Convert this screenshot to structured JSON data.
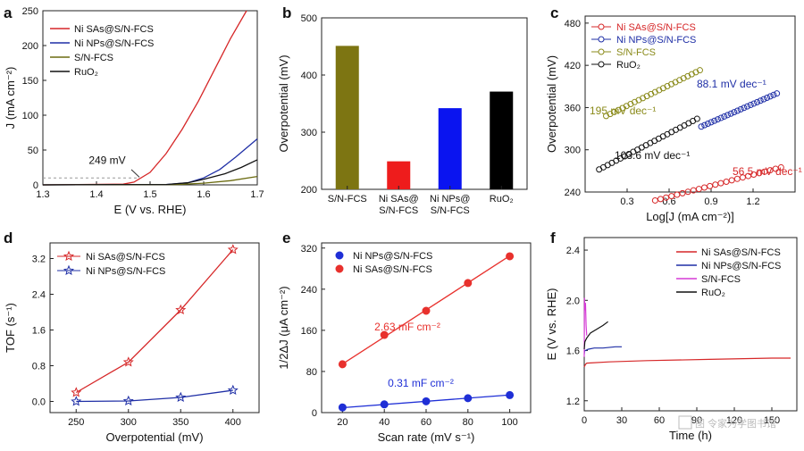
{
  "chart_data": [
    {
      "panel": "a",
      "type": "line",
      "xlabel": "E (V vs. RHE)",
      "ylabel": "J (mA cm⁻²)",
      "xlim": [
        1.3,
        1.7
      ],
      "ylim": [
        0,
        250
      ],
      "xticks": [
        1.3,
        1.4,
        1.5,
        1.6,
        1.7
      ],
      "xtick_labels": [
        "1.3",
        "1.4",
        "1.5",
        "1.6",
        "1.7"
      ],
      "yticks": [
        0,
        50,
        100,
        150,
        200,
        250
      ],
      "ytick_labels": [
        "0",
        "50",
        "100",
        "150",
        "200",
        "250"
      ],
      "legend_position": "top-left",
      "legend": [
        "Ni SAs@S/N-FCS",
        "Ni NPs@S/N-FCS",
        "S/N-FCS",
        "RuO₂"
      ],
      "series": [
        {
          "name": "Ni SAs@S/N-FCS",
          "color": "#d62728",
          "x": [
            1.3,
            1.45,
            1.47,
            1.5,
            1.53,
            1.56,
            1.59,
            1.62,
            1.65,
            1.68
          ],
          "y": [
            0,
            1,
            4,
            18,
            45,
            80,
            120,
            165,
            210,
            255
          ]
        },
        {
          "name": "Ni NPs@S/N-FCS",
          "color": "#1f2fa6",
          "x": [
            1.3,
            1.53,
            1.57,
            1.6,
            1.63,
            1.66,
            1.7
          ],
          "y": [
            0,
            0.5,
            3,
            10,
            22,
            40,
            66
          ]
        },
        {
          "name": "S/N-FCS",
          "color": "#6b6b10",
          "x": [
            1.3,
            1.55,
            1.6,
            1.65,
            1.7
          ],
          "y": [
            0,
            0.5,
            2.5,
            6,
            12
          ]
        },
        {
          "name": "RuO₂",
          "color": "#111111",
          "x": [
            1.3,
            1.53,
            1.57,
            1.6,
            1.64,
            1.67,
            1.7
          ],
          "y": [
            0,
            0.5,
            3,
            8,
            16,
            25,
            36
          ]
        }
      ],
      "annotations": [
        {
          "text": "249 mV",
          "x": 1.479,
          "y": 10
        }
      ]
    },
    {
      "panel": "b",
      "type": "bar",
      "ylabel": "Overpotential (mV)",
      "ylim": [
        200,
        500
      ],
      "yticks": [
        200,
        300,
        400,
        500
      ],
      "categories": [
        [
          "S/N-FCS"
        ],
        [
          "Ni SAs@",
          "S/N-FCS"
        ],
        [
          "Ni NPs@",
          "S/N-FCS"
        ],
        [
          "RuO₂"
        ]
      ],
      "values": [
        451,
        249,
        342,
        371
      ],
      "colors": [
        "#7d7512",
        "#ee1c1c",
        "#0a14f0",
        "#000000"
      ]
    },
    {
      "panel": "c",
      "type": "scatter",
      "xlabel": "Log[J (mA cm⁻²)]",
      "ylabel": "Overpotential (mV)",
      "xlim": [
        0.0,
        1.5
      ],
      "ylim": [
        240,
        490
      ],
      "xticks": [
        0.3,
        0.6,
        0.9,
        1.2
      ],
      "yticks": [
        240,
        300,
        360,
        420,
        480
      ],
      "legend_position": "top-left",
      "legend": [
        "Ni SAs@S/N-FCS",
        "Ni NPs@S/N-FCS",
        "S/N-FCS",
        "RuO₂"
      ],
      "series": [
        {
          "name": "Ni SAs@S/N-FCS",
          "color": "#d62728",
          "x_range": [
            0.5,
            1.4
          ],
          "y_range": [
            228,
            275
          ],
          "slope_label": "56.5 mV dec⁻¹"
        },
        {
          "name": "Ni NPs@S/N-FCS",
          "color": "#1f2fa6",
          "x_range": [
            0.83,
            1.37
          ],
          "y_range": [
            333,
            380
          ],
          "slope_label": "88.1 mV dec⁻¹"
        },
        {
          "name": "S/N-FCS",
          "color": "#8a8a1a",
          "x_range": [
            0.15,
            0.82
          ],
          "y_range": [
            348,
            413
          ],
          "slope_label": "195 mV dec⁻¹"
        },
        {
          "name": "RuO₂",
          "color": "#111111",
          "x_range": [
            0.1,
            0.8
          ],
          "y_range": [
            272,
            344
          ],
          "slope_label": "103.6 mV dec⁻¹"
        }
      ]
    },
    {
      "panel": "d",
      "type": "line",
      "xlabel": "Overpotential (mV)",
      "ylabel": "TOF (s⁻¹)",
      "xlim": [
        225,
        425
      ],
      "ylim": [
        -0.25,
        3.55
      ],
      "xticks": [
        250,
        300,
        350,
        400
      ],
      "yticks": [
        0.0,
        0.8,
        1.6,
        2.4,
        3.2
      ],
      "ytick_labels": [
        "0.0",
        "0.8",
        "1.6",
        "2.4",
        "3.2"
      ],
      "legend_position": "top-left",
      "legend": [
        "Ni SAs@S/N-FCS",
        "Ni NPs@S/N-FCS"
      ],
      "series": [
        {
          "name": "Ni SAs@S/N-FCS",
          "color": "#d62728",
          "x": [
            250,
            300,
            350,
            400
          ],
          "y": [
            0.2,
            0.88,
            2.05,
            3.4
          ]
        },
        {
          "name": "Ni NPs@S/N-FCS",
          "color": "#1f2fa6",
          "x": [
            250,
            300,
            350,
            400
          ],
          "y": [
            0.0,
            0.01,
            0.09,
            0.25
          ]
        }
      ]
    },
    {
      "panel": "e",
      "type": "scatter",
      "xlabel": "Scan rate (mV s⁻¹)",
      "ylabel": "1/2ΔJ (μA cm⁻²)",
      "xlim": [
        10,
        110
      ],
      "ylim": [
        0,
        330
      ],
      "xticks": [
        20,
        40,
        60,
        80,
        100
      ],
      "yticks": [
        0,
        80,
        160,
        240,
        320
      ],
      "legend_position": "top-left",
      "legend": [
        "Ni NPs@S/N-FCS",
        "Ni SAs@S/N-FCS"
      ],
      "series": [
        {
          "name": "Ni NPs@S/N-FCS",
          "color": "#1f2fd6",
          "x": [
            20,
            40,
            60,
            80,
            100
          ],
          "y": [
            10,
            16,
            22,
            28,
            34
          ],
          "fit": [
            [
              20,
              9.5
            ],
            [
              100,
              34.3
            ]
          ],
          "slope_label": "0.31 mF cm⁻²"
        },
        {
          "name": "Ni SAs@S/N-FCS",
          "color": "#e8312d",
          "x": [
            20,
            40,
            60,
            80,
            100
          ],
          "y": [
            94,
            151,
            198,
            252,
            304
          ],
          "fit": [
            [
              20,
              94.5
            ],
            [
              100,
              304.9
            ]
          ],
          "slope_label": "2.63 mF cm⁻²"
        }
      ]
    },
    {
      "panel": "f",
      "type": "line",
      "xlabel": "Time (h)",
      "ylabel": "E (V vs. RHE)",
      "xlim": [
        0,
        170
      ],
      "ylim": [
        1.12,
        2.5
      ],
      "xticks": [
        0,
        30,
        60,
        90,
        120,
        150
      ],
      "yticks": [
        1.2,
        1.6,
        2.0,
        2.4
      ],
      "ytick_labels": [
        "1.2",
        "1.6",
        "2.0",
        "2.4"
      ],
      "legend_position": "top-right",
      "legend": [
        "Ni SAs@S/N-FCS",
        "Ni NPs@S/N-FCS",
        "S/N-FCS",
        "RuO₂"
      ],
      "series": [
        {
          "name": "Ni SAs@S/N-FCS",
          "color": "#d62728",
          "x": [
            0,
            1,
            2,
            20,
            50,
            100,
            150,
            165
          ],
          "y": [
            1.47,
            1.49,
            1.5,
            1.51,
            1.52,
            1.53,
            1.54,
            1.54
          ]
        },
        {
          "name": "Ni NPs@S/N-FCS",
          "color": "#1f2fa6",
          "x": [
            0,
            0.3,
            1,
            3,
            8,
            15,
            25,
            30
          ],
          "y": [
            1.57,
            1.6,
            1.6,
            1.61,
            1.62,
            1.62,
            1.63,
            1.63
          ]
        },
        {
          "name": "S/N-FCS",
          "color": "#d63ad6",
          "x": [
            0,
            0.2,
            0.5,
            1.0,
            1.5,
            2.0
          ],
          "y": [
            1.55,
            2.02,
            1.92,
            1.98,
            1.8,
            1.72
          ]
        },
        {
          "name": "RuO₂",
          "color": "#111111",
          "x": [
            0,
            0.5,
            2,
            5,
            10,
            15,
            19
          ],
          "y": [
            1.61,
            1.67,
            1.7,
            1.74,
            1.77,
            1.8,
            1.83
          ]
        }
      ]
    }
  ],
  "watermark": "图 令家为学图书馆"
}
